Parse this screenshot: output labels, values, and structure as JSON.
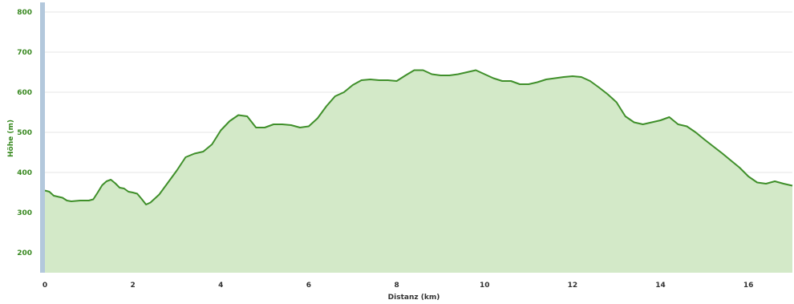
{
  "chart_data": {
    "type": "area",
    "title": "",
    "xlabel": "Distanz (km)",
    "ylabel": "Höhe (m)",
    "xlim": [
      0,
      17
    ],
    "ylim": [
      150,
      820
    ],
    "xticks": [
      0,
      2,
      4,
      6,
      8,
      10,
      12,
      14,
      16
    ],
    "yticks": [
      200,
      300,
      400,
      500,
      600,
      700,
      800
    ],
    "grid": true,
    "colors": {
      "line": "#3f8f2a",
      "fill": "#d3e9c8",
      "grid": "#e6e6e6",
      "axis_bar": "#b3c8dc"
    },
    "series": [
      {
        "x": [
          0,
          0.1,
          0.2,
          0.4,
          0.5,
          0.6,
          0.8,
          1.0,
          1.1,
          1.2,
          1.3,
          1.4,
          1.5,
          1.6,
          1.7,
          1.8,
          1.9,
          2.0,
          2.1,
          2.2,
          2.3,
          2.4,
          2.6,
          2.8,
          3.0,
          3.2,
          3.4,
          3.6,
          3.8,
          4.0,
          4.2,
          4.4,
          4.6,
          4.8,
          5.0,
          5.2,
          5.4,
          5.6,
          5.8,
          6.0,
          6.2,
          6.4,
          6.6,
          6.8,
          7.0,
          7.2,
          7.4,
          7.6,
          7.8,
          8.0,
          8.2,
          8.4,
          8.6,
          8.8,
          9.0,
          9.2,
          9.4,
          9.6,
          9.8,
          10.0,
          10.2,
          10.4,
          10.6,
          10.8,
          11.0,
          11.2,
          11.4,
          11.6,
          11.8,
          12.0,
          12.2,
          12.4,
          12.6,
          12.8,
          13.0,
          13.2,
          13.4,
          13.6,
          13.8,
          14.0,
          14.2,
          14.4,
          14.6,
          14.8,
          15.0,
          15.2,
          15.4,
          15.6,
          15.8,
          16.0,
          16.2,
          16.4,
          16.6,
          16.8,
          17.0
        ],
        "values": [
          355,
          352,
          342,
          337,
          330,
          328,
          330,
          330,
          333,
          350,
          368,
          378,
          382,
          373,
          362,
          360,
          352,
          350,
          347,
          334,
          320,
          325,
          345,
          375,
          405,
          438,
          447,
          452,
          470,
          505,
          528,
          543,
          540,
          512,
          512,
          520,
          520,
          518,
          512,
          515,
          535,
          565,
          590,
          600,
          618,
          630,
          632,
          630,
          630,
          628,
          642,
          655,
          655,
          645,
          642,
          642,
          645,
          650,
          655,
          645,
          635,
          628,
          628,
          620,
          620,
          625,
          632,
          635,
          638,
          640,
          638,
          628,
          612,
          595,
          575,
          540,
          525,
          520,
          525,
          530,
          538,
          520,
          515,
          500,
          482,
          465,
          448,
          430,
          412,
          390,
          375,
          372,
          378,
          372,
          367
        ]
      }
    ]
  }
}
